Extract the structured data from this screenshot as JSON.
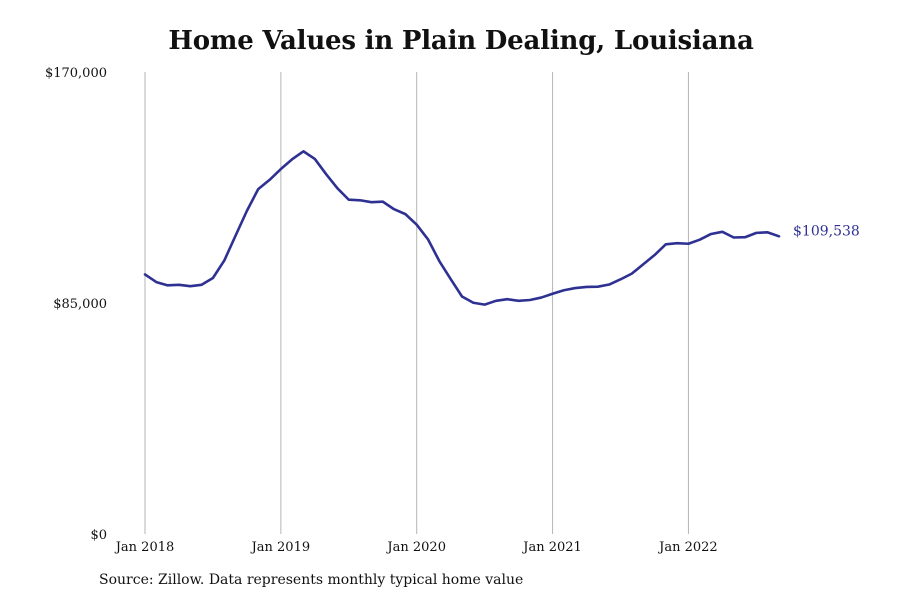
{
  "chart_data": {
    "type": "line",
    "title": "Home Values in Plain Dealing, Louisiana",
    "xlabel": "",
    "ylabel": "",
    "x_range": [
      "2018-01",
      "2022-08"
    ],
    "ylim": [
      0,
      170000
    ],
    "y_ticks": [
      {
        "value": 0,
        "label": "$0"
      },
      {
        "value": 85000,
        "label": "$85,000"
      },
      {
        "value": 170000,
        "label": "$170,000"
      }
    ],
    "x_ticks": [
      {
        "value": "2018-01",
        "label": "Jan 2018"
      },
      {
        "value": "2019-01",
        "label": "Jan 2019"
      },
      {
        "value": "2020-01",
        "label": "Jan 2020"
      },
      {
        "value": "2021-01",
        "label": "Jan 2021"
      },
      {
        "value": "2022-01",
        "label": "Jan 2022"
      }
    ],
    "grid": {
      "vertical": true,
      "horizontal": false
    },
    "line_color": "#2e3192",
    "grid_color": "#b5b5b5",
    "end_label": "$109,538",
    "series": [
      {
        "points": [
          [
            "2018-01",
            95500
          ],
          [
            "2018-02",
            92700
          ],
          [
            "2018-03",
            91500
          ],
          [
            "2018-04",
            91700
          ],
          [
            "2018-05",
            91200
          ],
          [
            "2018-06",
            91700
          ],
          [
            "2018-07",
            94200
          ],
          [
            "2018-08",
            100600
          ],
          [
            "2018-09",
            109800
          ],
          [
            "2018-10",
            118900
          ],
          [
            "2018-11",
            126900
          ],
          [
            "2018-12",
            130300
          ],
          [
            "2019-01",
            134300
          ],
          [
            "2019-02",
            137900
          ],
          [
            "2019-03",
            140800
          ],
          [
            "2019-04",
            138000
          ],
          [
            "2019-05",
            132400
          ],
          [
            "2019-06",
            127200
          ],
          [
            "2019-07",
            123000
          ],
          [
            "2019-08",
            122800
          ],
          [
            "2019-09",
            122100
          ],
          [
            "2019-10",
            122300
          ],
          [
            "2019-11",
            119500
          ],
          [
            "2019-12",
            117700
          ],
          [
            "2020-01",
            113800
          ],
          [
            "2020-02",
            108400
          ],
          [
            "2020-03",
            100400
          ],
          [
            "2020-04",
            93800
          ],
          [
            "2020-05",
            87400
          ],
          [
            "2020-06",
            85100
          ],
          [
            "2020-07",
            84400
          ],
          [
            "2020-08",
            85800
          ],
          [
            "2020-09",
            86400
          ],
          [
            "2020-10",
            85800
          ],
          [
            "2020-11",
            86100
          ],
          [
            "2020-12",
            87000
          ],
          [
            "2021-01",
            88400
          ],
          [
            "2021-02",
            89700
          ],
          [
            "2021-03",
            90500
          ],
          [
            "2021-04",
            90900
          ],
          [
            "2021-05",
            91000
          ],
          [
            "2021-06",
            91800
          ],
          [
            "2021-07",
            93700
          ],
          [
            "2021-08",
            95800
          ],
          [
            "2021-09",
            99200
          ],
          [
            "2021-10",
            102600
          ],
          [
            "2021-11",
            106600
          ],
          [
            "2021-12",
            107000
          ],
          [
            "2022-01",
            106800
          ],
          [
            "2022-02",
            108300
          ],
          [
            "2022-03",
            110400
          ],
          [
            "2022-04",
            111200
          ],
          [
            "2022-05",
            109100
          ],
          [
            "2022-06",
            109200
          ],
          [
            "2022-07",
            110800
          ],
          [
            "2022-08",
            111000
          ],
          [
            "2022-09",
            109538
          ]
        ]
      }
    ]
  },
  "source_note": "Source: Zillow. Data represents monthly typical home value"
}
